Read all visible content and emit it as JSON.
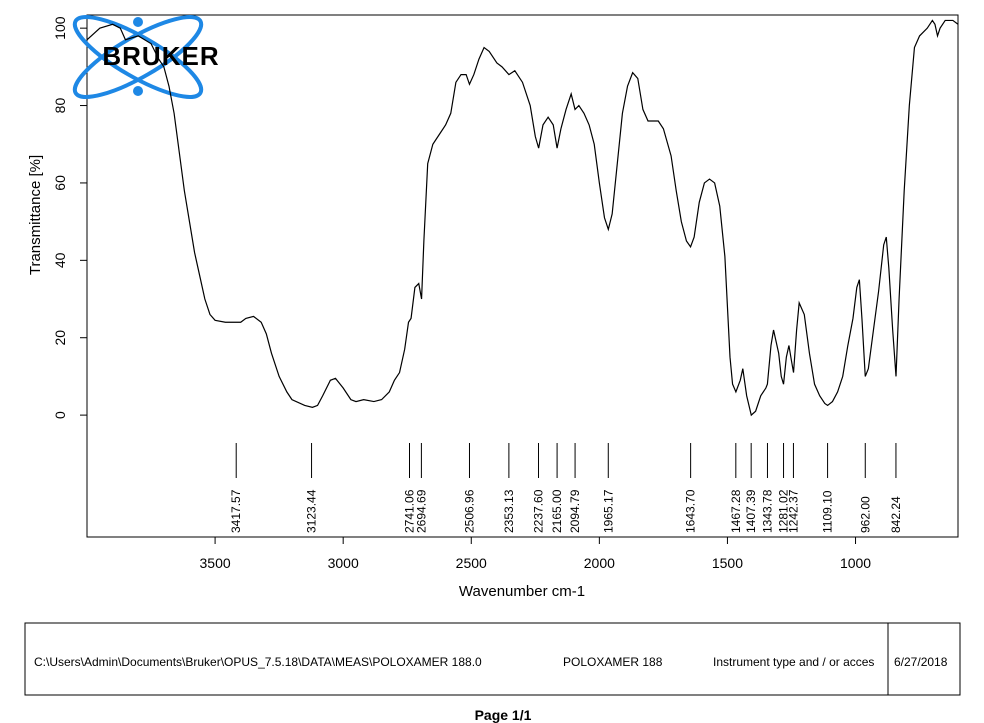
{
  "chart_data": {
    "type": "line",
    "xlabel": "Wavenumber cm-1",
    "ylabel": "Transmittance [%]",
    "logo": "BRUKER",
    "xlim": [
      4000,
      600
    ],
    "ylim": [
      -31.5,
      103.4
    ],
    "xticks": [
      3500,
      3000,
      2500,
      2000,
      1500,
      1000
    ],
    "yticks": [
      0,
      20,
      40,
      60,
      80,
      100
    ],
    "x": [
      4000,
      3950,
      3900,
      3870,
      3850,
      3800,
      3750,
      3720,
      3700,
      3680,
      3660,
      3640,
      3620,
      3600,
      3580,
      3560,
      3540,
      3520,
      3500,
      3460,
      3420,
      3400,
      3380,
      3350,
      3320,
      3300,
      3280,
      3250,
      3220,
      3200,
      3150,
      3120,
      3100,
      3080,
      3050,
      3030,
      3000,
      2970,
      2950,
      2920,
      2880,
      2850,
      2820,
      2800,
      2780,
      2760,
      2745,
      2735,
      2720,
      2705,
      2694,
      2685,
      2670,
      2650,
      2620,
      2600,
      2580,
      2560,
      2540,
      2520,
      2507,
      2490,
      2470,
      2450,
      2430,
      2400,
      2380,
      2353,
      2330,
      2300,
      2270,
      2250,
      2237,
      2220,
      2200,
      2180,
      2165,
      2150,
      2130,
      2110,
      2095,
      2080,
      2060,
      2040,
      2020,
      2000,
      1980,
      1965,
      1950,
      1930,
      1910,
      1890,
      1870,
      1850,
      1830,
      1810,
      1790,
      1770,
      1750,
      1720,
      1700,
      1680,
      1660,
      1644,
      1630,
      1610,
      1590,
      1570,
      1550,
      1530,
      1510,
      1490,
      1480,
      1467,
      1450,
      1440,
      1425,
      1407,
      1390,
      1370,
      1350,
      1344,
      1330,
      1320,
      1300,
      1290,
      1281,
      1270,
      1260,
      1250,
      1242,
      1230,
      1220,
      1200,
      1180,
      1160,
      1140,
      1120,
      1109,
      1090,
      1070,
      1050,
      1030,
      1010,
      995,
      985,
      975,
      962,
      950,
      930,
      910,
      890,
      880,
      870,
      855,
      842,
      830,
      810,
      790,
      770,
      750,
      720,
      700,
      690,
      680,
      670,
      650,
      620,
      600
    ],
    "series": [
      {
        "name": "POLOXAMER 188",
        "color": "#000000",
        "values": [
          97,
          100,
          101,
          100,
          97,
          98,
          96,
          92,
          90,
          85,
          78,
          68,
          58,
          50,
          42,
          36,
          30,
          26,
          24.5,
          24,
          24,
          24,
          25,
          25.5,
          24,
          21,
          16,
          10,
          6,
          4,
          2.5,
          2,
          2.5,
          5,
          9,
          9.5,
          7,
          4,
          3.5,
          4,
          3.5,
          4,
          6,
          9,
          11,
          17,
          24,
          25,
          33,
          34,
          30,
          45,
          65,
          70,
          73,
          75,
          78,
          86,
          88,
          88,
          85.5,
          88,
          92,
          95,
          94,
          91,
          90,
          88,
          89,
          86,
          80,
          72,
          69,
          75,
          77,
          75,
          69,
          74,
          79,
          83,
          79,
          80,
          78,
          75,
          70,
          60,
          51,
          48,
          52,
          65,
          78,
          85,
          88.5,
          87,
          79,
          76,
          76,
          76,
          74,
          67,
          58,
          50,
          45,
          43.5,
          46,
          55,
          60,
          61,
          60,
          54,
          41,
          15,
          8,
          6,
          9,
          12,
          5,
          0,
          1,
          5,
          7,
          8,
          18,
          22,
          16,
          10,
          8,
          15,
          18,
          14,
          11,
          22,
          29,
          26,
          16,
          8,
          5,
          3,
          2.5,
          3.5,
          6,
          10,
          18,
          25,
          33,
          35,
          25,
          10,
          12,
          22,
          32,
          44,
          46,
          38,
          22,
          10,
          30,
          58,
          80,
          95,
          98,
          100,
          102,
          101,
          98,
          100,
          102,
          102,
          101
        ]
      }
    ],
    "peaks": [
      {
        "value": 3417.57,
        "label": "3417.57"
      },
      {
        "value": 3123.44,
        "label": "3123.44"
      },
      {
        "value": 2741.06,
        "label": "2741.06"
      },
      {
        "value": 2694.69,
        "label": "2694.69"
      },
      {
        "value": 2506.96,
        "label": "2506.96"
      },
      {
        "value": 2353.13,
        "label": "2353.13"
      },
      {
        "value": 2237.6,
        "label": "2237.60"
      },
      {
        "value": 2165,
        "label": "2165.00"
      },
      {
        "value": 2094.79,
        "label": "2094.79"
      },
      {
        "value": 1965.17,
        "label": "1965.17"
      },
      {
        "value": 1643.7,
        "label": "1643.70"
      },
      {
        "value": 1467.28,
        "label": "1467.28"
      },
      {
        "value": 1407.39,
        "label": "1407.39"
      },
      {
        "value": 1343.78,
        "label": "1343.78"
      },
      {
        "value": 1281.02,
        "label": "1281.02"
      },
      {
        "value": 1242.37,
        "label": "1242.37"
      },
      {
        "value": 1109.1,
        "label": "1109.10"
      },
      {
        "value": 962,
        "label": "962.00"
      },
      {
        "value": 842.24,
        "label": "842.24"
      }
    ]
  },
  "footer": {
    "path": "C:\\Users\\Admin\\Documents\\Bruker\\OPUS_7.5.18\\DATA\\MEAS\\POLOXAMER 188.0",
    "sample": "POLOXAMER 188",
    "instrument": "Instrument type and / or acces",
    "date": "6/27/2018",
    "page": "Page 1/1"
  }
}
